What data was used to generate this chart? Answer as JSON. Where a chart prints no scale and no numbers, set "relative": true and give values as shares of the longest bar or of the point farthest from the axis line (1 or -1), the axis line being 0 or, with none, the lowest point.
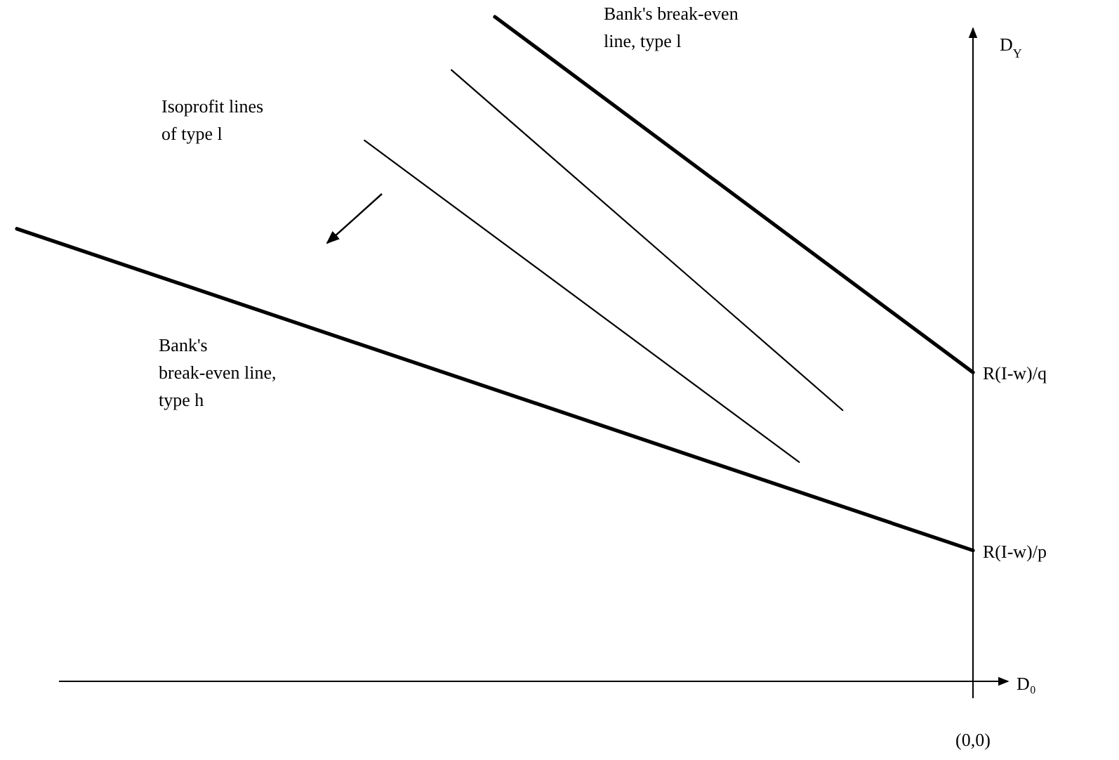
{
  "chart_data": {
    "type": "line",
    "relative": true,
    "xlabel": "D₀",
    "ylabel": "D$_{Y}$",
    "categories": [
      null,
      null,
      null,
      null,
      null,
      null,
      null,
      null,
      null,
      null,
      null,
      null,
      null,
      null,
      null,
      null,
      null,
      null,
      null,
      null,
      null,
      null,
      null
    ],
    "series": [
      {
        "color": "#000000",
        "values": [
          null,
          null,
          null,
          null,
          null,
          null,
          null,
          null,
          null,
          null,
          null,
          1,
          null,
          null,
          null,
          null,
          null,
          null,
          null,
          null,
          null,
          null,
          0.465
        ]
      },
      {
        "color": "#000000",
        "values": [
          null,
          null,
          null,
          null,
          null,
          null,
          null,
          null,
          null,
          null,
          0.92,
          null,
          null,
          null,
          null,
          null,
          null,
          null,
          null,
          0.408,
          null,
          null,
          null
        ]
      },
      {
        "color": "#000000",
        "values": [
          null,
          null,
          null,
          null,
          null,
          null,
          null,
          null,
          0.814,
          null,
          null,
          null,
          null,
          null,
          null,
          null,
          null,
          null,
          0.33,
          null,
          null,
          null,
          null
        ]
      },
      {
        "color": "#000000",
        "values": [
          0.681,
          null,
          null,
          null,
          null,
          null,
          null,
          null,
          null,
          null,
          null,
          null,
          null,
          null,
          null,
          null,
          null,
          null,
          null,
          null,
          null,
          null,
          0.197
        ]
      }
    ],
    "annotations": [
      "Bank's break-even line, type l",
      "Isoprofit lines of type l",
      "Bank's break-even line, type h",
      "R(I-w)/q",
      "R(I-w)/p",
      "(0,0)"
    ]
  }
}
